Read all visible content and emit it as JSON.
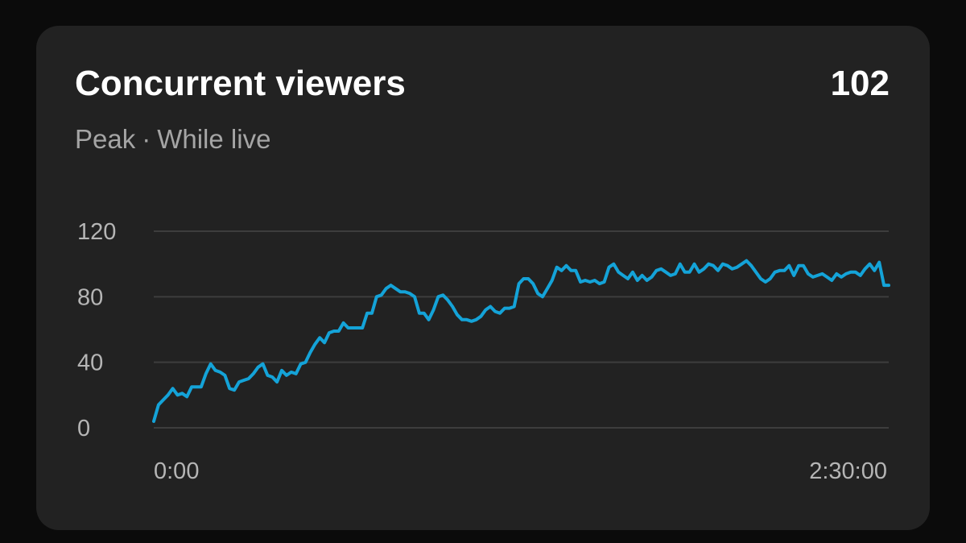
{
  "card": {
    "title": "Concurrent viewers",
    "value": "102",
    "subtitle_metric": "Peak",
    "subtitle_separator": "·",
    "subtitle_period": "While live"
  },
  "colors": {
    "line": "#14a3d8",
    "grid": "#3d3d3d",
    "card_background": "#222222",
    "page_background": "#0b0b0b"
  },
  "chart_data": {
    "type": "line",
    "title": "",
    "xlabel": "",
    "ylabel": "",
    "ylim": [
      0,
      120
    ],
    "y_ticks": [
      0,
      40,
      80,
      120
    ],
    "x_tick_labels": [
      "0:00",
      "2:30:00"
    ],
    "grid": true,
    "series": [
      {
        "values": [
          4,
          14,
          17,
          20,
          24,
          20,
          21,
          19,
          25,
          25,
          25,
          33,
          39,
          35,
          34,
          32,
          24,
          23,
          28,
          29,
          30,
          33,
          37,
          39,
          32,
          31,
          28,
          35,
          32,
          34,
          33,
          39,
          40,
          46,
          51,
          55,
          52,
          58,
          59,
          59,
          64,
          61,
          61,
          61,
          61,
          70,
          70,
          80,
          81,
          85,
          87,
          85,
          83,
          83,
          82,
          80,
          70,
          70,
          66,
          72,
          80,
          81,
          78,
          74,
          69,
          66,
          66,
          65,
          66,
          68,
          72,
          74,
          71,
          70,
          73,
          73,
          74,
          88,
          91,
          91,
          88,
          82,
          80,
          85,
          90,
          98,
          96,
          99,
          96,
          96,
          89,
          90,
          89,
          90,
          88,
          89,
          98,
          100,
          95,
          93,
          91,
          95,
          90,
          93,
          90,
          92,
          96,
          97,
          95,
          93,
          94,
          100,
          95,
          95,
          100,
          95,
          97,
          100,
          99,
          96,
          100,
          99,
          97,
          98,
          100,
          102,
          99,
          95,
          91,
          89,
          91,
          95,
          96,
          96,
          99,
          93,
          99,
          99,
          94,
          92,
          93,
          94,
          92,
          90,
          94,
          92,
          94,
          95,
          95,
          93,
          97,
          100,
          96,
          101,
          87,
          87
        ]
      }
    ]
  }
}
